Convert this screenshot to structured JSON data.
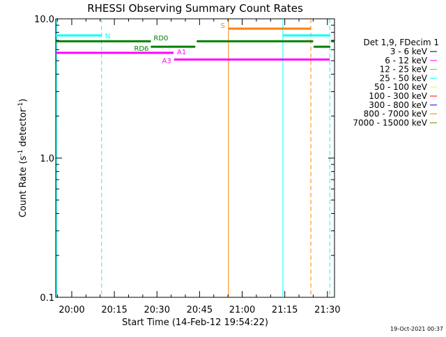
{
  "chart_data": {
    "type": "line",
    "title": "RHESSI Observing Summary Count Rates",
    "xlabel": "Start Time (14-Feb-12 19:54:22)",
    "ylabel_main": "Count Rate (s",
    "ylabel_sup1": "-1",
    "ylabel_mid": " detector",
    "ylabel_sup2": "-1",
    "ylabel_end": ")",
    "xlim": [
      "19:54:22",
      "21:32:30"
    ],
    "ylim": [
      0.1,
      10.0
    ],
    "yscale": "log",
    "x_ticks": [
      "20:00",
      "20:15",
      "20:30",
      "20:45",
      "21:00",
      "21:15",
      "21:30"
    ],
    "y_ticks": [
      "0.1",
      "1.0",
      "10.0"
    ],
    "legend": {
      "title": "Det 1,9, FDecim 1",
      "placement": "right",
      "entries": [
        {
          "label": "3 - 6 keV",
          "color": "#000000"
        },
        {
          "label": "6 - 12 keV",
          "color": "#ff00ff"
        },
        {
          "label": "12 - 25 keV",
          "color": "#00ff00"
        },
        {
          "label": "25 - 50 keV",
          "color": "#00ffff"
        },
        {
          "label": "50 - 100 keV",
          "color": "#ffff00"
        },
        {
          "label": "100 - 300 keV",
          "color": "#ff0000"
        },
        {
          "label": "300 - 800 keV",
          "color": "#0000ff"
        },
        {
          "label": "800 - 7000 keV",
          "color": "#ff8000"
        },
        {
          "label": "7000 - 15000 keV",
          "color": "#808000"
        }
      ]
    },
    "flag_bars": [
      {
        "label": "N",
        "color": "#00ffff",
        "y": 7.6,
        "segments": [
          [
            "19:54:22",
            "20:10:30"
          ],
          [
            "21:14:20",
            "21:30:50"
          ]
        ]
      },
      {
        "label": "S",
        "color": "#ff8000",
        "y": 8.5,
        "segments": [
          [
            "20:55:10",
            "21:24:10"
          ]
        ]
      },
      {
        "label": "RD0",
        "color": "#008000",
        "y": 6.9,
        "segments": [
          [
            "19:54:22",
            "20:27:50"
          ],
          [
            "20:44:00",
            "21:25:00"
          ],
          [
            "21:31:20",
            "21:32:20"
          ]
        ]
      },
      {
        "label": "RD6",
        "color": "#008000",
        "y": 6.3,
        "segments": [
          [
            "20:27:50",
            "20:43:30"
          ],
          [
            "21:25:10",
            "21:31:00"
          ]
        ]
      },
      {
        "label": "A1",
        "color": "#ff00ff",
        "y": 5.7,
        "segments": [
          [
            "19:54:22",
            "20:35:50"
          ]
        ]
      },
      {
        "label": "A3",
        "color": "#ff00ff",
        "y": 5.1,
        "segments": [
          [
            "20:36:00",
            "21:30:50"
          ]
        ]
      }
    ],
    "vertical_markers": [
      {
        "time": "19:54:40",
        "color": "#00ffff",
        "style": "solid"
      },
      {
        "time": "20:10:30",
        "color": "#00ffff",
        "style": "dashed"
      },
      {
        "time": "20:55:10",
        "color": "#ff8000",
        "style": "solid"
      },
      {
        "time": "21:14:20",
        "color": "#00ffff",
        "style": "solid"
      },
      {
        "time": "21:24:10",
        "color": "#ff8000",
        "style": "dashed"
      },
      {
        "time": "21:30:50",
        "color": "#00ffff",
        "style": "dashed"
      }
    ]
  },
  "footer": {
    "timestamp": "19-Oct-2021 00:37"
  }
}
